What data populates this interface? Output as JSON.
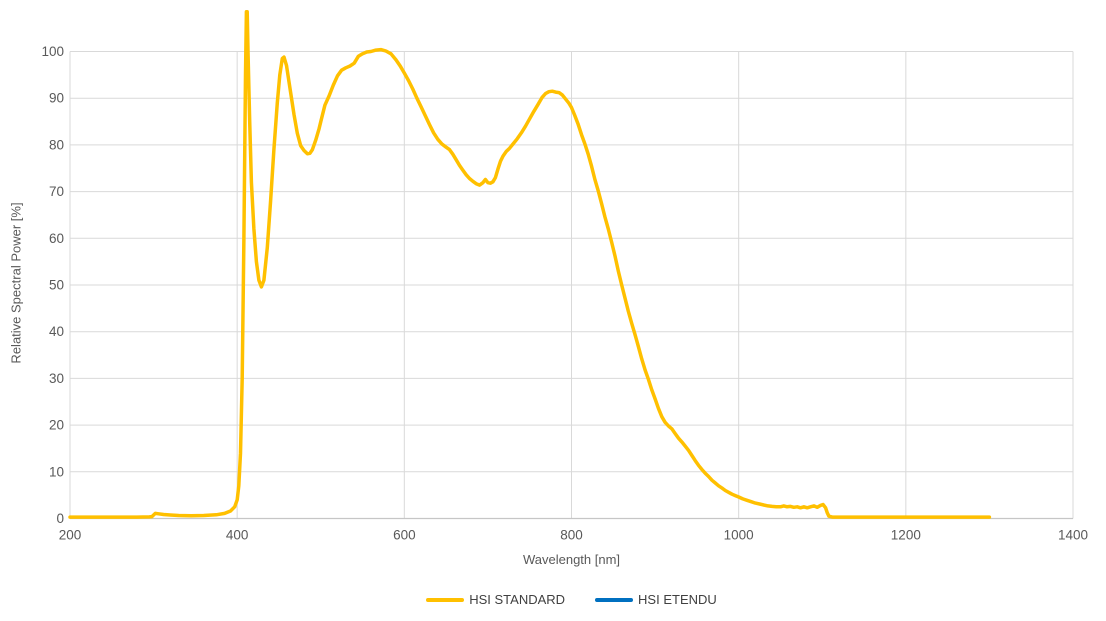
{
  "chart_data": {
    "type": "line",
    "title": "",
    "xlabel": "Wavelength [nm]",
    "ylabel": "Relative Spectral Power [%]",
    "xlim": [
      200,
      1400
    ],
    "ylim": [
      0,
      100
    ],
    "x_ticks": [
      200,
      400,
      600,
      800,
      1000,
      1200,
      1400
    ],
    "y_ticks": [
      0,
      10,
      20,
      30,
      40,
      50,
      60,
      70,
      80,
      90,
      100
    ],
    "grid": true,
    "legend_position": "bottom-center",
    "series": [
      {
        "name": "HSI STANDARD",
        "color": "#FFC000",
        "points": [
          [
            200,
            0.3
          ],
          [
            240,
            0.3
          ],
          [
            280,
            0.3
          ],
          [
            295,
            0.35
          ],
          [
            298,
            0.4
          ],
          [
            302,
            1.1
          ],
          [
            306,
            1.0
          ],
          [
            312,
            0.85
          ],
          [
            320,
            0.75
          ],
          [
            330,
            0.65
          ],
          [
            345,
            0.6
          ],
          [
            360,
            0.65
          ],
          [
            375,
            0.8
          ],
          [
            385,
            1.1
          ],
          [
            392,
            1.6
          ],
          [
            397,
            2.5
          ],
          [
            400,
            4
          ],
          [
            402,
            7
          ],
          [
            404,
            14
          ],
          [
            406,
            30
          ],
          [
            408,
            60
          ],
          [
            410,
            95
          ],
          [
            411,
            108.5
          ],
          [
            412,
            108.5
          ],
          [
            413,
            100
          ],
          [
            415,
            85
          ],
          [
            417,
            72
          ],
          [
            420,
            62
          ],
          [
            423,
            55
          ],
          [
            426,
            51
          ],
          [
            429,
            49.6
          ],
          [
            432,
            51
          ],
          [
            436,
            58
          ],
          [
            440,
            68
          ],
          [
            444,
            79
          ],
          [
            448,
            89
          ],
          [
            451,
            95
          ],
          [
            454,
            98.5
          ],
          [
            456,
            98.8
          ],
          [
            459,
            97
          ],
          [
            462,
            93.5
          ],
          [
            465,
            90
          ],
          [
            468,
            86.5
          ],
          [
            472,
            82.5
          ],
          [
            476,
            79.8
          ],
          [
            480,
            78.8
          ],
          [
            484,
            78.1
          ],
          [
            487,
            78.2
          ],
          [
            490,
            79
          ],
          [
            494,
            81
          ],
          [
            498,
            83.5
          ],
          [
            500,
            85
          ],
          [
            505,
            88.5
          ],
          [
            510,
            90.5
          ],
          [
            515,
            92.8
          ],
          [
            520,
            94.8
          ],
          [
            525,
            96
          ],
          [
            530,
            96.5
          ],
          [
            535,
            96.9
          ],
          [
            540,
            97.5
          ],
          [
            545,
            99
          ],
          [
            550,
            99.5
          ],
          [
            555,
            99.9
          ],
          [
            560,
            100
          ],
          [
            566,
            100.3
          ],
          [
            572,
            100.4
          ],
          [
            578,
            100.1
          ],
          [
            584,
            99.5
          ],
          [
            590,
            98.2
          ],
          [
            595,
            96.9
          ],
          [
            600,
            95.4
          ],
          [
            605,
            93.8
          ],
          [
            610,
            92
          ],
          [
            615,
            90
          ],
          [
            620,
            88.2
          ],
          [
            625,
            86.3
          ],
          [
            630,
            84.4
          ],
          [
            635,
            82.6
          ],
          [
            640,
            81.2
          ],
          [
            645,
            80.2
          ],
          [
            650,
            79.5
          ],
          [
            654,
            79
          ],
          [
            658,
            78
          ],
          [
            662,
            76.8
          ],
          [
            666,
            75.6
          ],
          [
            670,
            74.6
          ],
          [
            674,
            73.6
          ],
          [
            678,
            72.8
          ],
          [
            682,
            72.2
          ],
          [
            686,
            71.7
          ],
          [
            690,
            71.4
          ],
          [
            694,
            71.9
          ],
          [
            697,
            72.6
          ],
          [
            700,
            71.9
          ],
          [
            703,
            71.8
          ],
          [
            706,
            72.1
          ],
          [
            709,
            73
          ],
          [
            712,
            74.8
          ],
          [
            715,
            76.5
          ],
          [
            718,
            77.6
          ],
          [
            722,
            78.6
          ],
          [
            726,
            79.3
          ],
          [
            730,
            80.2
          ],
          [
            735,
            81.3
          ],
          [
            740,
            82.6
          ],
          [
            745,
            84
          ],
          [
            750,
            85.6
          ],
          [
            755,
            87.2
          ],
          [
            760,
            88.7
          ],
          [
            765,
            90.2
          ],
          [
            769,
            91
          ],
          [
            773,
            91.4
          ],
          [
            777,
            91.5
          ],
          [
            781,
            91.3
          ],
          [
            785,
            91.2
          ],
          [
            789,
            90.7
          ],
          [
            793,
            89.8
          ],
          [
            797,
            88.9
          ],
          [
            800,
            88
          ],
          [
            804,
            86.3
          ],
          [
            808,
            84.4
          ],
          [
            812,
            82.2
          ],
          [
            816,
            80.2
          ],
          [
            820,
            78
          ],
          [
            824,
            75.4
          ],
          [
            828,
            72.6
          ],
          [
            832,
            70.2
          ],
          [
            836,
            67.4
          ],
          [
            840,
            64.6
          ],
          [
            844,
            62
          ],
          [
            848,
            59.2
          ],
          [
            852,
            56.2
          ],
          [
            856,
            53
          ],
          [
            860,
            50
          ],
          [
            864,
            47.2
          ],
          [
            868,
            44.4
          ],
          [
            872,
            41.8
          ],
          [
            876,
            39.4
          ],
          [
            880,
            36.8
          ],
          [
            884,
            34.2
          ],
          [
            888,
            31.8
          ],
          [
            892,
            29.8
          ],
          [
            896,
            27.6
          ],
          [
            900,
            25.6
          ],
          [
            904,
            23.6
          ],
          [
            908,
            21.8
          ],
          [
            912,
            20.6
          ],
          [
            916,
            19.8
          ],
          [
            920,
            19.2
          ],
          [
            924,
            18.2
          ],
          [
            928,
            17.2
          ],
          [
            932,
            16.4
          ],
          [
            936,
            15.5
          ],
          [
            940,
            14.6
          ],
          [
            944,
            13.5
          ],
          [
            948,
            12.4
          ],
          [
            952,
            11.4
          ],
          [
            956,
            10.5
          ],
          [
            960,
            9.7
          ],
          [
            964,
            9.0
          ],
          [
            968,
            8.2
          ],
          [
            972,
            7.6
          ],
          [
            976,
            7.0
          ],
          [
            980,
            6.5
          ],
          [
            984,
            6.0
          ],
          [
            988,
            5.6
          ],
          [
            992,
            5.2
          ],
          [
            996,
            4.9
          ],
          [
            1000,
            4.6
          ],
          [
            1005,
            4.2
          ],
          [
            1010,
            3.9
          ],
          [
            1015,
            3.6
          ],
          [
            1020,
            3.3
          ],
          [
            1025,
            3.1
          ],
          [
            1030,
            2.9
          ],
          [
            1035,
            2.7
          ],
          [
            1040,
            2.6
          ],
          [
            1045,
            2.5
          ],
          [
            1050,
            2.5
          ],
          [
            1054,
            2.7
          ],
          [
            1058,
            2.5
          ],
          [
            1062,
            2.6
          ],
          [
            1066,
            2.4
          ],
          [
            1070,
            2.5
          ],
          [
            1074,
            2.3
          ],
          [
            1078,
            2.5
          ],
          [
            1082,
            2.3
          ],
          [
            1086,
            2.5
          ],
          [
            1090,
            2.7
          ],
          [
            1094,
            2.4
          ],
          [
            1098,
            2.8
          ],
          [
            1101,
            3.0
          ],
          [
            1104,
            2.3
          ],
          [
            1106,
            1.2
          ],
          [
            1108,
            0.5
          ],
          [
            1112,
            0.3
          ],
          [
            1130,
            0.3
          ],
          [
            1160,
            0.3
          ],
          [
            1200,
            0.3
          ],
          [
            1250,
            0.3
          ],
          [
            1300,
            0.3
          ]
        ]
      },
      {
        "name": "HSI ETENDU",
        "color": "#0070C0",
        "points": []
      }
    ]
  },
  "axes": {
    "x_title": "Wavelength [nm]",
    "y_title": "Relative Spectral Power [%]"
  },
  "legend": {
    "items": [
      "HSI STANDARD",
      "HSI ETENDU"
    ]
  },
  "colors": {
    "hsi_standard": "#FFC000",
    "hsi_etendu": "#0070C0",
    "gridline": "#D9D9D9",
    "axis_line": "#C6C6C6",
    "tick_text": "#595959",
    "legend_text": "#404040",
    "background": "#FFFFFF"
  }
}
